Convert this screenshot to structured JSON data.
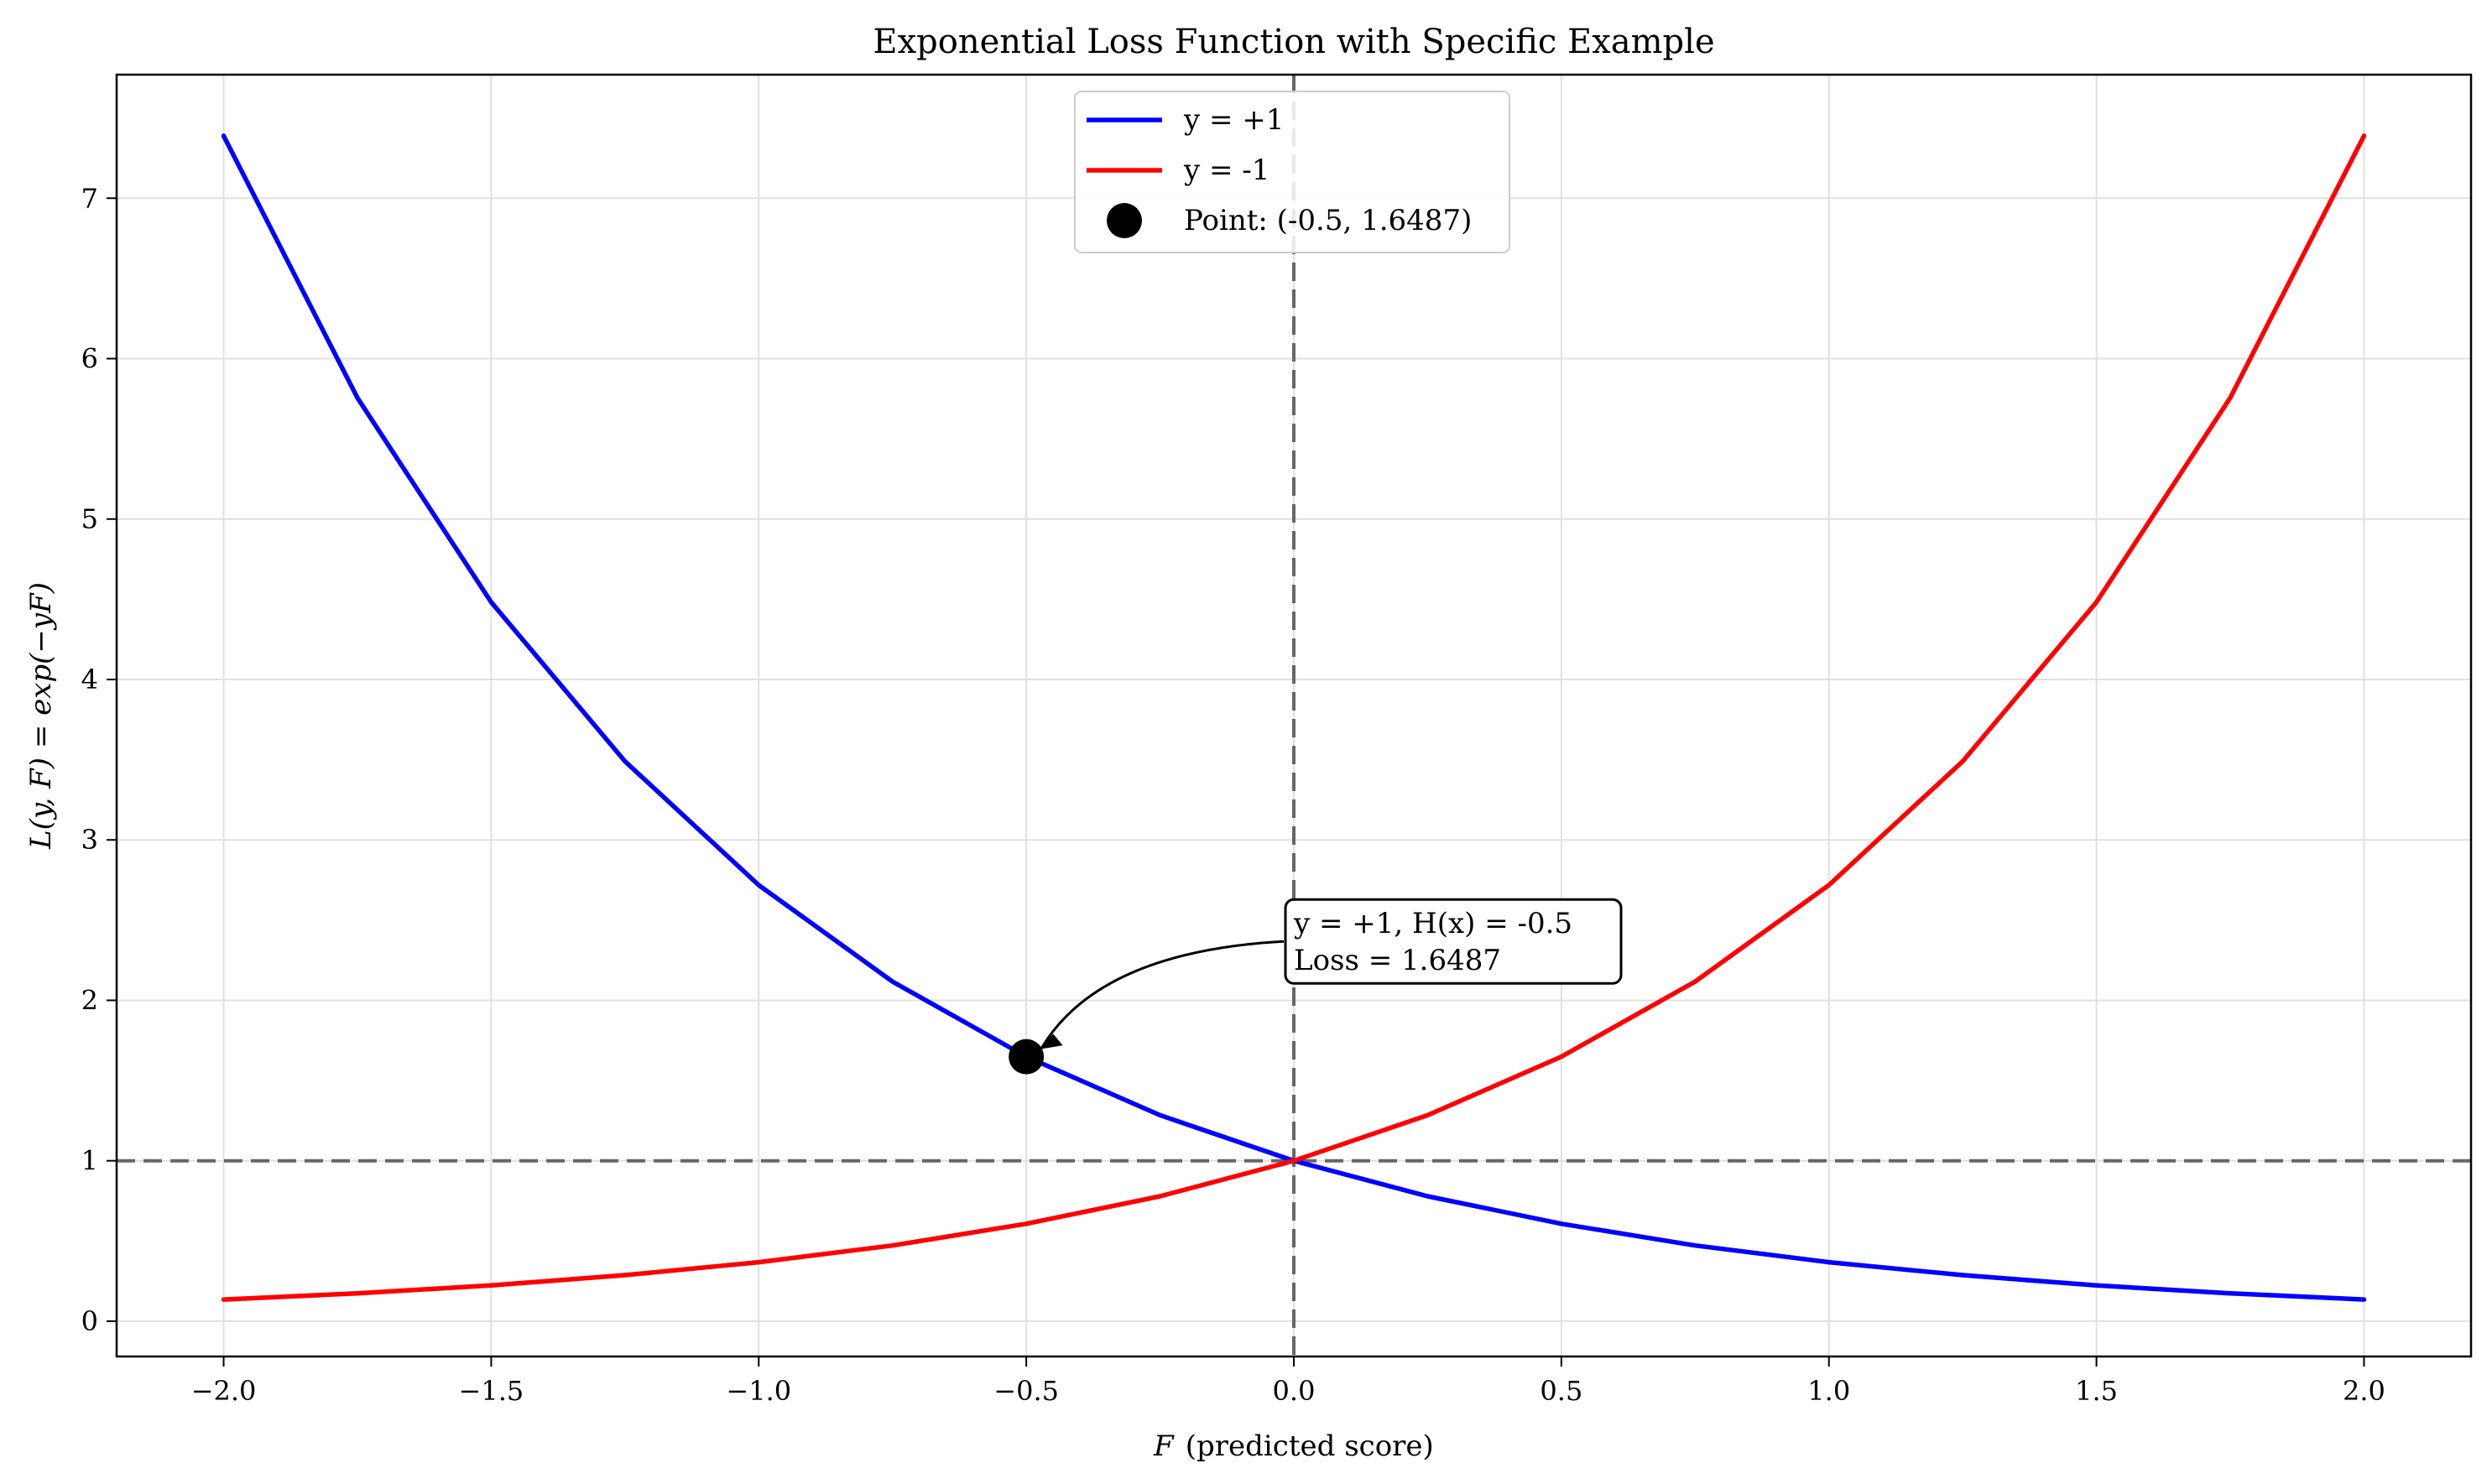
{
  "chart_data": {
    "type": "line",
    "title": "Exponential Loss Function with Specific Example",
    "xlabel_var": "F",
    "xlabel_rest": "(predicted score)",
    "ylabel": "L(y, F) = exp(−yF)",
    "xlim": [
      -2.2,
      2.2
    ],
    "ylim": [
      -0.22,
      7.77
    ],
    "xticks": [
      -2.0,
      -1.5,
      -1.0,
      -0.5,
      0.0,
      0.5,
      1.0,
      1.5,
      2.0
    ],
    "xtick_labels": [
      "−2.0",
      "−1.5",
      "−1.0",
      "−0.5",
      "0.0",
      "0.5",
      "1.0",
      "1.5",
      "2.0"
    ],
    "yticks": [
      0,
      1,
      2,
      3,
      4,
      5,
      6,
      7
    ],
    "ytick_labels": [
      "0",
      "1",
      "2",
      "3",
      "4",
      "5",
      "6",
      "7"
    ],
    "grid": true,
    "legend_position": "top-center",
    "series": [
      {
        "name": "y = +1",
        "color": "#0000ff",
        "x": [
          -2.0,
          -1.75,
          -1.5,
          -1.25,
          -1.0,
          -0.75,
          -0.5,
          -0.25,
          0.0,
          0.25,
          0.5,
          0.75,
          1.0,
          1.25,
          1.5,
          1.75,
          2.0
        ],
        "y": [
          7.389,
          5.755,
          4.482,
          3.49,
          2.718,
          2.117,
          1.649,
          1.284,
          1.0,
          0.779,
          0.607,
          0.472,
          0.368,
          0.287,
          0.223,
          0.174,
          0.135
        ]
      },
      {
        "name": "y = -1",
        "color": "#ff0000",
        "x": [
          -2.0,
          -1.75,
          -1.5,
          -1.25,
          -1.0,
          -0.75,
          -0.5,
          -0.25,
          0.0,
          0.25,
          0.5,
          0.75,
          1.0,
          1.25,
          1.5,
          1.75,
          2.0
        ],
        "y": [
          0.135,
          0.174,
          0.223,
          0.287,
          0.368,
          0.472,
          0.607,
          0.779,
          1.0,
          1.284,
          1.649,
          2.117,
          2.718,
          3.49,
          4.482,
          5.755,
          7.389
        ]
      }
    ],
    "point": {
      "label": "Point: (-0.5, 1.6487)",
      "x": -0.5,
      "y": 1.6487,
      "color": "#000000"
    },
    "reference_lines": {
      "horizontal_y": 1,
      "vertical_x": 0,
      "color": "#666666",
      "style": "dashed"
    },
    "annotation": {
      "lines": [
        "y = +1, H(x) = -0.5",
        "Loss = 1.6487"
      ],
      "x": 0.0,
      "y": 2.2,
      "target_x": -0.5,
      "target_y": 1.6487
    }
  }
}
